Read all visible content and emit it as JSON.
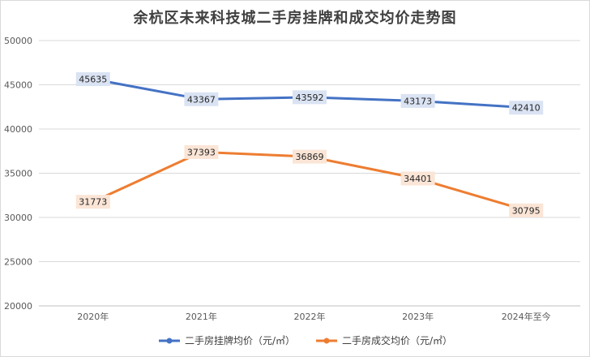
{
  "chart_data": {
    "type": "line",
    "title": "余杭区未来科技城二手房挂牌和成交均价走势图",
    "categories": [
      "2020年",
      "2021年",
      "2022年",
      "2023年",
      "2024年至今"
    ],
    "ylim": [
      20000,
      50000
    ],
    "yticks": [
      20000,
      25000,
      30000,
      35000,
      40000,
      45000,
      50000
    ],
    "grid": true,
    "legend_position": "bottom",
    "series": [
      {
        "name": "二手房挂牌均价（元/㎡）",
        "values": [
          45635,
          43367,
          43592,
          43173,
          42410
        ],
        "color": "#4472c4",
        "label_bg": "#dae3f3"
      },
      {
        "name": "二手房成交均价（元/㎡）",
        "values": [
          31773,
          37393,
          36869,
          34401,
          30795
        ],
        "color": "#ed7d31",
        "label_bg": "#fbe5d6"
      }
    ]
  }
}
